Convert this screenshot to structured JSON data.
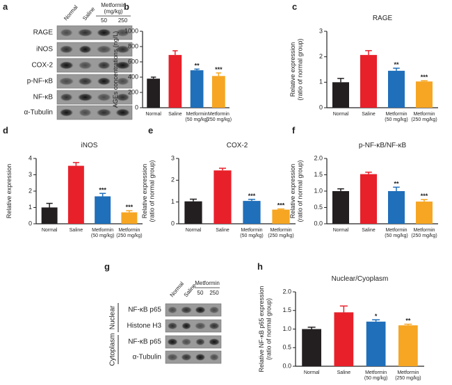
{
  "panel_labels": [
    "a",
    "b",
    "c",
    "d",
    "e",
    "f",
    "g",
    "h"
  ],
  "blot_a": {
    "lanes": [
      "Normal",
      "Saline"
    ],
    "group": "Metformin\n(mg/kg)",
    "doses": [
      "50",
      "250"
    ],
    "rows": [
      "RAGE",
      "iNOS",
      "COX-2",
      "p-NF-κB",
      "NF-κB",
      "α-Tubulin"
    ]
  },
  "blot_g": {
    "lanes": [
      "Normal",
      "Saline"
    ],
    "group": "Metformin",
    "doses": [
      "50",
      "250"
    ],
    "sections": [
      "Nuclear",
      "Cytoplasm"
    ],
    "rows": [
      "NF-κB p65",
      "Histone H3",
      "NF-κB p65",
      "α-Tubulin"
    ]
  },
  "chart_data": [
    {
      "type": "bar",
      "ylabel": "AGEs concentrations (ng/L)",
      "categories": [
        "Normal",
        "Saline",
        "Metformin\n(50 mg/kg)",
        "Metformin\n(250 mg/kg)"
      ],
      "values": [
        380,
        690,
        490,
        415
      ],
      "errors": [
        20,
        55,
        15,
        40
      ],
      "annotations": [
        null,
        null,
        "**",
        "***"
      ],
      "colors": [
        "#231f20",
        "#e8202a",
        "#1f6fba",
        "#f6a623"
      ],
      "ylim": [
        0,
        1000
      ],
      "yticks": [
        0,
        200,
        400,
        600,
        800,
        1000
      ]
    },
    {
      "type": "bar",
      "title": "RAGE",
      "ylabel": "Relative expression\n(ratio of normal group)",
      "categories": [
        "Normal",
        "Saline",
        "Metformin\n(50 mg/kg)",
        "Metformin\n(250 mg/kg)"
      ],
      "values": [
        1.0,
        2.07,
        1.45,
        1.03
      ],
      "errors": [
        0.15,
        0.17,
        0.1,
        0.03
      ],
      "annotations": [
        null,
        null,
        "**",
        "***"
      ],
      "colors": [
        "#231f20",
        "#e8202a",
        "#1f6fba",
        "#f6a623"
      ],
      "ylim": [
        0,
        3
      ],
      "yticks": [
        0,
        1,
        2,
        3
      ]
    },
    {
      "type": "bar",
      "title": "iNOS",
      "ylabel": "Relative expression",
      "categories": [
        "Normal",
        "Saline",
        "Metformin\n(50 mg/kg)",
        "Metformin\n(250 mg/kg)"
      ],
      "values": [
        1.0,
        3.55,
        1.68,
        0.7
      ],
      "errors": [
        0.25,
        0.2,
        0.18,
        0.1
      ],
      "annotations": [
        null,
        null,
        "***",
        "***"
      ],
      "colors": [
        "#231f20",
        "#e8202a",
        "#1f6fba",
        "#f6a623"
      ],
      "ylim": [
        0,
        4
      ],
      "yticks": [
        0,
        1,
        2,
        3,
        4
      ]
    },
    {
      "type": "bar",
      "title": "COX-2",
      "ylabel": "Relative expression\n(ratio of normal group)",
      "categories": [
        "Normal",
        "Saline",
        "Metformin\n(50 mg/kg)",
        "Metformin\n(250 mg/kg)"
      ],
      "values": [
        1.03,
        2.45,
        1.05,
        0.65
      ],
      "errors": [
        0.1,
        0.1,
        0.07,
        0.03
      ],
      "annotations": [
        null,
        null,
        "***",
        "***"
      ],
      "colors": [
        "#231f20",
        "#e8202a",
        "#1f6fba",
        "#f6a623"
      ],
      "ylim": [
        0,
        3
      ],
      "yticks": [
        0,
        1,
        2,
        3
      ]
    },
    {
      "type": "bar",
      "title": "p-NF-κB/NF-κB",
      "ylabel": "Relative expression\n(ratio of normal group)",
      "categories": [
        "Normal",
        "Saline",
        "Metformin\n(50 mg/kg)",
        "Metformin\n(250 mg/kg)"
      ],
      "values": [
        1.0,
        1.52,
        1.0,
        0.68
      ],
      "errors": [
        0.07,
        0.06,
        0.12,
        0.06
      ],
      "annotations": [
        null,
        null,
        "**",
        "***"
      ],
      "colors": [
        "#231f20",
        "#e8202a",
        "#1f6fba",
        "#f6a623"
      ],
      "ylim": [
        0,
        2
      ],
      "yticks": [
        {
          "value": 0,
          "label": "0.0"
        },
        0.5,
        {
          "value": 1,
          "label": "1.0"
        },
        1.5,
        {
          "value": 2,
          "label": "2.0"
        }
      ]
    },
    {
      "type": "bar",
      "title": "Nuclear/Cyoplasm",
      "ylabel": "Relative NF-κB p65 expression\n(ratio of normal group)",
      "categories": [
        "Normal",
        "Saline",
        "Metformin\n(50 mg/kg)",
        "Metformin\n(250 mg/kg)"
      ],
      "values": [
        1.0,
        1.45,
        1.2,
        1.1
      ],
      "errors": [
        0.05,
        0.17,
        0.05,
        0.03
      ],
      "annotations": [
        null,
        null,
        "*",
        "**"
      ],
      "colors": [
        "#231f20",
        "#e8202a",
        "#1f6fba",
        "#f6a623"
      ],
      "ylim": [
        0,
        2
      ],
      "yticks": [
        {
          "value": 0,
          "label": "0.0"
        },
        0.5,
        {
          "value": 1,
          "label": "1.0"
        },
        1.5,
        {
          "value": 2,
          "label": "2.0"
        }
      ]
    }
  ]
}
